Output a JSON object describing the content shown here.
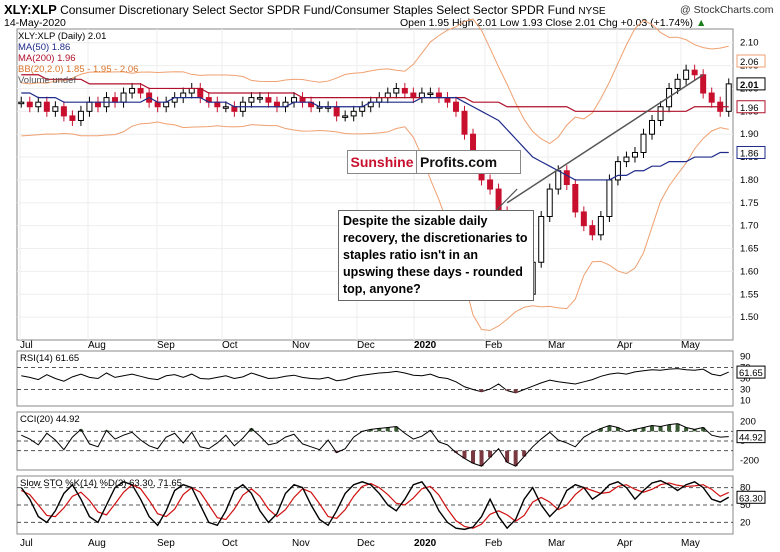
{
  "header": {
    "symbol": "XLY:XLP",
    "description": "Consumer Discretionary Select Sector SPDR Fund/Consumer Staples Select Sector SPDR Fund",
    "exchange": "NYSE",
    "date": "14-May-2020",
    "brand": "@ StockCharts.com",
    "ohlc": "Open 1.95 High 2.01 Low 1.93 Close 2.01 Chg +0.03 (+1.74%)",
    "up_arrow": "▲"
  },
  "legend": {
    "main": "XLY:XLP (Daily) 2.01",
    "ma50": "MA(50) 1.86",
    "ma200": "MA(200) 1.96",
    "bb": "BB(20,2.0) 1.85 - 1.95 - 2.06",
    "volume": "Volume undef"
  },
  "watermark": {
    "left": "Sunshine",
    "right": "Profits.com"
  },
  "annotation": "Despite the sizable daily recovery, the discretionaries to staples ratio isn't in an upswing these days - rounded top, anyone?",
  "colors": {
    "up": "#000000",
    "down": "#c8102e",
    "ma50": "#1e2b8a",
    "ma200": "#b0102a",
    "bb": "#f0a070",
    "osc_up": "#3a5a34",
    "osc_down": "#7a3840"
  },
  "chart_data": [
    {
      "type": "candlestick",
      "x_labels": [
        "Jul",
        "Aug",
        "Sep",
        "Oct",
        "Nov",
        "Dec",
        "2020",
        "Feb",
        "Mar",
        "Apr",
        "May"
      ],
      "y_ticks": [
        "2.10",
        "2.05",
        "2.00",
        "1.95",
        "1.90",
        "1.85",
        "1.80",
        "1.75",
        "1.70",
        "1.65",
        "1.60",
        "1.55",
        "1.50"
      ],
      "ylim": [
        1.45,
        2.13
      ],
      "price_labels": [
        "2.06",
        "2.01",
        "1.96",
        "1.86"
      ],
      "close_series": [
        1.97,
        1.96,
        1.97,
        1.95,
        1.96,
        1.94,
        1.93,
        1.95,
        1.97,
        1.96,
        1.98,
        1.97,
        1.99,
        2.0,
        1.99,
        1.97,
        1.96,
        1.97,
        1.98,
        1.99,
        2.0,
        1.98,
        1.97,
        1.96,
        1.96,
        1.95,
        1.97,
        1.98,
        1.98,
        1.97,
        1.96,
        1.97,
        1.98,
        1.97,
        1.96,
        1.96,
        1.96,
        1.94,
        1.94,
        1.95,
        1.96,
        1.97,
        1.98,
        1.99,
        2.0,
        1.99,
        1.98,
        1.99,
        1.99,
        1.98,
        1.97,
        1.95,
        1.9,
        1.85,
        1.8,
        1.78,
        1.73,
        1.68,
        1.6,
        1.55,
        1.62,
        1.72,
        1.78,
        1.82,
        1.79,
        1.73,
        1.7,
        1.68,
        1.72,
        1.8,
        1.84,
        1.85,
        1.86,
        1.9,
        1.93,
        1.96,
        2.0,
        2.02,
        2.04,
        2.03,
        1.99,
        1.97,
        1.95,
        2.01
      ],
      "ma50": [
        1.99,
        1.99,
        1.98,
        1.98,
        1.98,
        1.97,
        1.97,
        1.97,
        1.97,
        1.97,
        1.97,
        1.97,
        1.97,
        1.97,
        1.97,
        1.98,
        1.97,
        1.97,
        1.98,
        1.98,
        1.98,
        1.98,
        1.97,
        1.97,
        1.97,
        1.96,
        1.96,
        1.96,
        1.96,
        1.96,
        1.96,
        1.96,
        1.97,
        1.97,
        1.97,
        1.96,
        1.96,
        1.96,
        1.96,
        1.96,
        1.96,
        1.97,
        1.97,
        1.97,
        1.97,
        1.97,
        1.97,
        1.98,
        1.98,
        1.98,
        1.98,
        1.98,
        1.97,
        1.96,
        1.95,
        1.94,
        1.93,
        1.91,
        1.89,
        1.87,
        1.85,
        1.84,
        1.83,
        1.82,
        1.81,
        1.8,
        1.8,
        1.8,
        1.8,
        1.8,
        1.81,
        1.81,
        1.82,
        1.82,
        1.83,
        1.83,
        1.84,
        1.84,
        1.84,
        1.85,
        1.85,
        1.85,
        1.86,
        1.86
      ],
      "ma200": [
        2.03,
        2.03,
        2.03,
        2.02,
        2.02,
        2.02,
        2.02,
        2.02,
        2.01,
        2.01,
        2.01,
        2.01,
        2.01,
        2.01,
        2.01,
        2.0,
        2.0,
        2.0,
        2.0,
        2.0,
        2.0,
        2.0,
        1.99,
        1.99,
        1.99,
        1.99,
        1.99,
        1.99,
        1.99,
        1.99,
        1.99,
        1.99,
        1.99,
        1.98,
        1.98,
        1.98,
        1.98,
        1.98,
        1.98,
        1.98,
        1.98,
        1.98,
        1.98,
        1.98,
        1.98,
        1.98,
        1.98,
        1.98,
        1.98,
        1.98,
        1.98,
        1.98,
        1.98,
        1.97,
        1.97,
        1.97,
        1.97,
        1.96,
        1.96,
        1.96,
        1.96,
        1.96,
        1.96,
        1.96,
        1.96,
        1.95,
        1.95,
        1.95,
        1.95,
        1.95,
        1.95,
        1.95,
        1.95,
        1.95,
        1.95,
        1.95,
        1.95,
        1.95,
        1.95,
        1.96,
        1.96,
        1.96,
        1.96,
        1.96
      ],
      "trendline": {
        "from": [
          "Mar",
          1.75
        ],
        "to": [
          "May",
          2.03
        ]
      }
    },
    {
      "type": "line",
      "name": "RSI(14) 61.65",
      "y_ticks": [
        "90",
        "70",
        "50",
        "30",
        "10"
      ],
      "last_value": "61.65",
      "values": [
        55,
        52,
        48,
        57,
        50,
        45,
        53,
        58,
        52,
        50,
        60,
        52,
        55,
        58,
        54,
        50,
        48,
        55,
        57,
        52,
        58,
        50,
        49,
        52,
        55,
        50,
        53,
        60,
        55,
        50,
        51,
        54,
        56,
        52,
        50,
        49,
        52,
        46,
        48,
        53,
        56,
        58,
        60,
        61,
        63,
        60,
        56,
        55,
        58,
        52,
        50,
        44,
        35,
        30,
        26,
        31,
        40,
        28,
        24,
        30,
        36,
        42,
        47,
        44,
        42,
        40,
        44,
        48,
        54,
        58,
        60,
        58,
        62,
        64,
        66,
        65,
        67,
        68,
        66,
        65,
        67,
        58,
        55,
        61.65
      ]
    },
    {
      "type": "line",
      "name": "CCI(20) 44.92",
      "y_ticks": [
        "200",
        "0",
        "-200"
      ],
      "last_value": "44.92",
      "values": [
        60,
        20,
        -40,
        80,
        10,
        -90,
        40,
        120,
        -30,
        -60,
        110,
        20,
        60,
        90,
        10,
        -50,
        -80,
        40,
        80,
        -20,
        90,
        -60,
        -80,
        -20,
        60,
        -50,
        30,
        130,
        50,
        -40,
        -20,
        40,
        70,
        -30,
        -60,
        -90,
        10,
        -120,
        -80,
        40,
        100,
        120,
        130,
        140,
        150,
        80,
        20,
        50,
        110,
        -10,
        -40,
        -120,
        -180,
        -230,
        -260,
        -170,
        -80,
        -220,
        -260,
        -160,
        -60,
        20,
        90,
        10,
        -20,
        -60,
        40,
        90,
        130,
        160,
        140,
        100,
        120,
        140,
        160,
        150,
        170,
        180,
        140,
        120,
        140,
        60,
        40,
        44.92
      ]
    },
    {
      "type": "line",
      "name": "Slow STO %K(14) %D(3) 63.30, 71.65",
      "y_ticks": [
        "80",
        "50",
        "20"
      ],
      "last_value": "63.30",
      "k": [
        80,
        60,
        30,
        20,
        40,
        70,
        85,
        60,
        30,
        20,
        50,
        80,
        90,
        85,
        60,
        30,
        15,
        40,
        75,
        85,
        80,
        50,
        20,
        15,
        40,
        75,
        85,
        70,
        40,
        20,
        35,
        70,
        85,
        80,
        50,
        25,
        15,
        40,
        70,
        85,
        90,
        85,
        70,
        50,
        40,
        60,
        85,
        90,
        70,
        40,
        20,
        10,
        8,
        12,
        30,
        60,
        30,
        10,
        25,
        60,
        80,
        50,
        30,
        45,
        75,
        85,
        80,
        60,
        70,
        85,
        90,
        80,
        60,
        75,
        88,
        92,
        85,
        75,
        85,
        90,
        80,
        60,
        55,
        63.3
      ],
      "d": [
        75,
        68,
        50,
        32,
        30,
        45,
        65,
        72,
        58,
        38,
        33,
        52,
        72,
        85,
        78,
        58,
        35,
        30,
        43,
        68,
        80,
        72,
        50,
        28,
        25,
        43,
        67,
        78,
        65,
        43,
        30,
        42,
        63,
        78,
        72,
        52,
        30,
        27,
        42,
        65,
        82,
        87,
        80,
        68,
        53,
        50,
        62,
        78,
        82,
        67,
        43,
        23,
        13,
        10,
        17,
        34,
        40,
        33,
        22,
        32,
        55,
        63,
        55,
        42,
        50,
        68,
        80,
        75,
        70,
        72,
        82,
        85,
        77,
        72,
        77,
        85,
        88,
        84,
        82,
        83,
        85,
        77,
        65,
        71.65
      ]
    }
  ]
}
